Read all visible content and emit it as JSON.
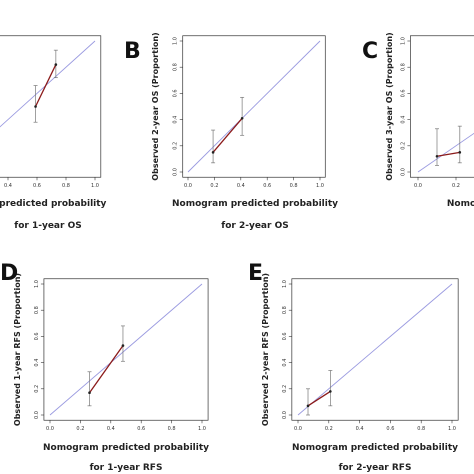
{
  "chart_data": [
    {
      "type": "calibration",
      "xlabel": [
        "n predicted probability",
        "for 1-year OS"
      ],
      "xlim": [
        0,
        1
      ],
      "ylim": [
        0,
        1
      ],
      "xticks": [
        {
          "value": 0.4,
          "label": "0.4"
        },
        {
          "value": 0.6,
          "label": "0.6"
        },
        {
          "value": 0.8,
          "label": "0.8"
        },
        {
          "value": 1,
          "label": "1.0"
        }
      ],
      "x": [
        0.59,
        0.73
      ],
      "values": [
        0.5,
        0.82
      ],
      "lower": [
        0.38,
        0.72
      ],
      "upper": [
        0.66,
        0.93
      ],
      "line_color": "#8b1a1a",
      "diagonal_color": "#9a9ae0"
    },
    {
      "type": "calibration",
      "label": "B",
      "ylabel": "Observed 2-year OS (Proportion)",
      "xlabel": [
        "Nomogram predicted probability",
        "for 2-year OS"
      ],
      "xlim": [
        0,
        1
      ],
      "ylim": [
        0,
        1
      ],
      "xticks": [
        {
          "value": 0,
          "label": "0.0"
        },
        {
          "value": 0.2,
          "label": "0.2"
        },
        {
          "value": 0.4,
          "label": "0.4"
        },
        {
          "value": 0.6,
          "label": "0.6"
        },
        {
          "value": 0.8,
          "label": "0.8"
        },
        {
          "value": 1,
          "label": "1.0"
        }
      ],
      "yticks": [
        {
          "value": 0,
          "label": "0.0"
        },
        {
          "value": 0.2,
          "label": "0.2"
        },
        {
          "value": 0.4,
          "label": "0.4"
        },
        {
          "value": 0.6,
          "label": "0.6"
        },
        {
          "value": 0.8,
          "label": "0.8"
        },
        {
          "value": 1,
          "label": "1.0"
        }
      ],
      "x": [
        0.19,
        0.41
      ],
      "values": [
        0.15,
        0.41
      ],
      "lower": [
        0.07,
        0.28
      ],
      "upper": [
        0.32,
        0.57
      ],
      "line_color": "#8b1a1a",
      "diagonal_color": "#9a9ae0"
    },
    {
      "type": "calibration",
      "label": "C",
      "ylabel": "Observed 3-year OS (Proportion)",
      "xlabel": [
        "Nomogra"
      ],
      "xlim": [
        0,
        1
      ],
      "ylim": [
        0,
        1
      ],
      "xticks": [
        {
          "value": 0,
          "label": "0.0"
        },
        {
          "value": 0.2,
          "label": "0.2"
        }
      ],
      "yticks": [
        {
          "value": 0,
          "label": "0.0"
        },
        {
          "value": 0.2,
          "label": "0.2"
        },
        {
          "value": 0.4,
          "label": "0.4"
        },
        {
          "value": 0.6,
          "label": "0.6"
        },
        {
          "value": 0.8,
          "label": "0.8"
        },
        {
          "value": 1,
          "label": "1.0"
        }
      ],
      "x": [
        0.1,
        0.22
      ],
      "values": [
        0.12,
        0.15
      ],
      "lower": [
        0.05,
        0.07
      ],
      "upper": [
        0.33,
        0.35
      ],
      "line_color": "#8b1a1a",
      "diagonal_color": "#9a9ae0"
    },
    {
      "type": "calibration",
      "label": "D",
      "ylabel": "Observed 1-year RFS (Proportion)",
      "xlabel": [
        "Nomogram predicted probability",
        "for 1-year RFS"
      ],
      "xlim": [
        0,
        1
      ],
      "ylim": [
        0,
        1
      ],
      "xticks": [
        {
          "value": 0,
          "label": "0.0"
        },
        {
          "value": 0.2,
          "label": "0.2"
        },
        {
          "value": 0.4,
          "label": "0.4"
        },
        {
          "value": 0.6,
          "label": "0.6"
        },
        {
          "value": 0.8,
          "label": "0.8"
        },
        {
          "value": 1,
          "label": "1.0"
        }
      ],
      "yticks": [
        {
          "value": 0,
          "label": "0.0"
        },
        {
          "value": 0.2,
          "label": "0.2"
        },
        {
          "value": 0.4,
          "label": "0.4"
        },
        {
          "value": 0.6,
          "label": "0.6"
        },
        {
          "value": 0.8,
          "label": "0.8"
        },
        {
          "value": 1,
          "label": "1.0"
        }
      ],
      "x": [
        0.26,
        0.48
      ],
      "values": [
        0.17,
        0.53
      ],
      "lower": [
        0.07,
        0.41
      ],
      "upper": [
        0.33,
        0.68
      ],
      "line_color": "#8b1a1a",
      "diagonal_color": "#9a9ae0"
    },
    {
      "type": "calibration",
      "label": "E",
      "ylabel": "Observed 2-year RFS (Proportion)",
      "xlabel": [
        "Nomogram predicted probability",
        "for 2-year RFS"
      ],
      "xlim": [
        0,
        1
      ],
      "ylim": [
        0,
        1
      ],
      "xticks": [
        {
          "value": 0,
          "label": "0.0"
        },
        {
          "value": 0.2,
          "label": "0.2"
        },
        {
          "value": 0.4,
          "label": "0.4"
        },
        {
          "value": 0.6,
          "label": "0.6"
        },
        {
          "value": 0.8,
          "label": "0.8"
        },
        {
          "value": 1,
          "label": "1.0"
        }
      ],
      "yticks": [
        {
          "value": 0,
          "label": "0.0"
        },
        {
          "value": 0.2,
          "label": "0.2"
        },
        {
          "value": 0.4,
          "label": "0.4"
        },
        {
          "value": 0.6,
          "label": "0.6"
        },
        {
          "value": 0.8,
          "label": "0.8"
        },
        {
          "value": 1,
          "label": "1.0"
        }
      ],
      "x": [
        0.065,
        0.21
      ],
      "values": [
        0.07,
        0.18
      ],
      "lower": [
        0.0,
        0.07
      ],
      "upper": [
        0.2,
        0.34
      ],
      "line_color": "#8b1a1a",
      "diagonal_color": "#9a9ae0"
    }
  ]
}
